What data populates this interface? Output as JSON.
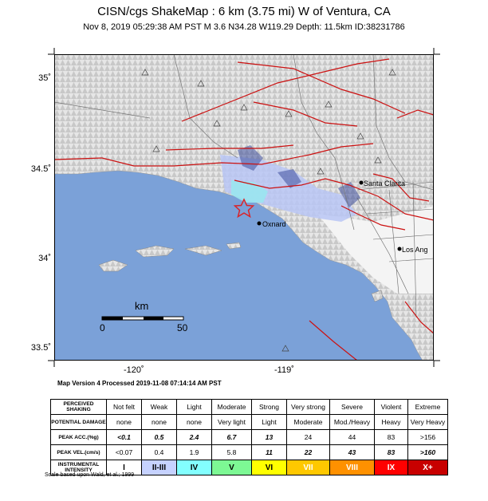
{
  "header": {
    "title": "CISN/cgs ShakeMap : 6 km (3.75 mi) W of Ventura, CA",
    "subtitle": "Nov  8, 2019 05:29:38 AM PST   M 3.6   N34.28 W119.29   Depth: 11.5km   ID:38231786"
  },
  "map": {
    "lat_labels": [
      "35˚",
      "34.5˚",
      "34˚",
      "33.5˚"
    ],
    "lon_labels": [
      "-120˚",
      "-119˚"
    ],
    "cities": {
      "santa_clarita": "Santa Clarita",
      "oxnard": "Oxnard",
      "los_angeles": "Los Ang"
    },
    "scale_bar": {
      "unit": "km",
      "start": "0",
      "end": "50"
    },
    "colors": {
      "ocean": "#7ba1d8",
      "land": "#ededed",
      "fault": "#cc1111",
      "epicenter": "#d9242a"
    }
  },
  "version_note": "Map Version 4 Processed 2019-11-08 07:14:14 AM PST",
  "legend": {
    "row_headers": [
      "PERCEIVED SHAKING",
      "POTENTIAL DAMAGE",
      "PEAK ACC.(%g)",
      "PEAK VEL.(cm/s)",
      "INSTRUMENTAL INTENSITY"
    ],
    "shaking": [
      "Not felt",
      "Weak",
      "Light",
      "Moderate",
      "Strong",
      "Very strong",
      "Severe",
      "Violent",
      "Extreme"
    ],
    "damage": [
      "none",
      "none",
      "none",
      "Very light",
      "Light",
      "Moderate",
      "Mod./Heavy",
      "Heavy",
      "Very Heavy"
    ],
    "acc": [
      "<0.1",
      "0.5",
      "2.4",
      "6.7",
      "13",
      "24",
      "44",
      "83",
      ">156"
    ],
    "vel": [
      "<0.07",
      "0.4",
      "1.9",
      "5.8",
      "11",
      "22",
      "43",
      "83",
      ">160"
    ],
    "intensity": [
      "I",
      "II-III",
      "IV",
      "V",
      "VI",
      "VII",
      "VIII",
      "IX",
      "X+"
    ],
    "intensity_colors": [
      "#ffffff",
      "#c6d2ff",
      "#83ffff",
      "#7df894",
      "#ffff00",
      "#ffc800",
      "#ff9100",
      "#ff0000",
      "#c80000"
    ]
  },
  "scale_note": "Scale based upon Wald, et al.; 1999"
}
